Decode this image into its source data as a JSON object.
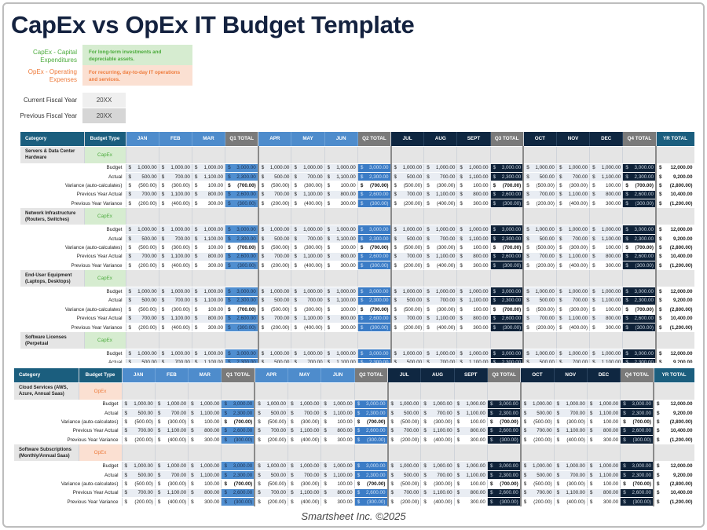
{
  "title": "CapEx vs OpEx IT Budget Template",
  "legend": {
    "capex_label": "CapEx - Capital Expenditures",
    "capex_desc": "For long-term investments and depreciable assets.",
    "opex_label": "OpEx - Operating Expenses",
    "opex_desc": "For recurring, day-to-day IT operations and services.",
    "capex_color": "#4bab3c",
    "opex_color": "#ee7b3c"
  },
  "fiscal": {
    "current_label": "Current Fiscal Year",
    "current_value": "20XX",
    "previous_label": "Previous Fiscal Year",
    "previous_value": "20XX"
  },
  "columns": [
    "Category",
    "Budget Type",
    "JAN",
    "FEB",
    "MAR",
    "Q1 TOTAL",
    "APR",
    "MAY",
    "JUN",
    "Q2 TOTAL",
    "JUL",
    "AUG",
    "SEPT",
    "Q3 TOTAL",
    "OCT",
    "NOV",
    "DEC",
    "Q4 TOTAL",
    "YR TOTAL"
  ],
  "currency": "$",
  "row_template": [
    {
      "label": "Budget",
      "months": [
        "1,000.00",
        "1,000.00",
        "1,000.00"
      ],
      "quarter": "3,000.00",
      "year": "12,000.00"
    },
    {
      "label": "Actual",
      "months": [
        "500.00",
        "700.00",
        "1,100.00"
      ],
      "quarter": "2,300.00",
      "year": "9,200.00"
    },
    {
      "label": "Variance (auto-calculates)",
      "months": [
        "(500.00)",
        "(300.00)",
        "100.00"
      ],
      "quarter": "(700.00)",
      "year": "(2,800.00)"
    },
    {
      "label": "Previous Year Actual",
      "months": [
        "700.00",
        "1,100.00",
        "800.00"
      ],
      "quarter": "2,600.00",
      "year": "10,400.00"
    },
    {
      "label": "Previous Year Variance",
      "months": [
        "(200.00)",
        "(400.00)",
        "300.00"
      ],
      "quarter": "(300.00)",
      "year": "(1,200.00)"
    }
  ],
  "tables": [
    {
      "sections": [
        {
          "name": "Servers & Data Center Hardware",
          "type": "CapEx",
          "rows": 5
        },
        {
          "name": "Network Infrastructure (Routers, Switches)",
          "type": "CapEx",
          "rows": 5
        },
        {
          "name": "End-User Equipment (Laptops, Desktops)",
          "type": "CapEx",
          "rows": 5
        },
        {
          "name": "Software Licenses (Perpetual",
          "type": "CapEx",
          "rows": 2
        }
      ]
    },
    {
      "sections": [
        {
          "name": "Cloud Services (AWS, Azure, Annual Saas)",
          "type": "OpEx",
          "rows": 5
        },
        {
          "name": "Software Subscriptions (Monthly/Annual Saas)",
          "type": "OpEx",
          "rows": 5
        }
      ]
    }
  ],
  "footer": "Smartsheet Inc. ©2025"
}
